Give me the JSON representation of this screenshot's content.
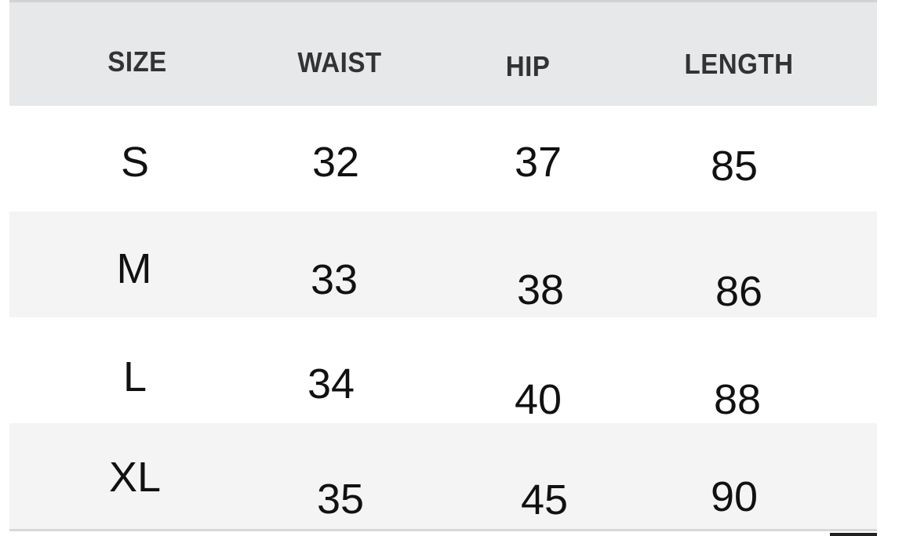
{
  "table": {
    "headers": [
      "SIZE",
      "WAIST",
      "HIP",
      "LENGTH"
    ],
    "rows": [
      [
        "S",
        "32",
        "37",
        "85"
      ],
      [
        "M",
        "33",
        "38",
        "86"
      ],
      [
        "L",
        "34",
        "40",
        "88"
      ],
      [
        "XL",
        "35",
        "45",
        "90"
      ]
    ]
  },
  "colors": {
    "header_bg": "#e7e8e9",
    "alt_row_bg": "#f4f4f4",
    "text": "#111111"
  }
}
